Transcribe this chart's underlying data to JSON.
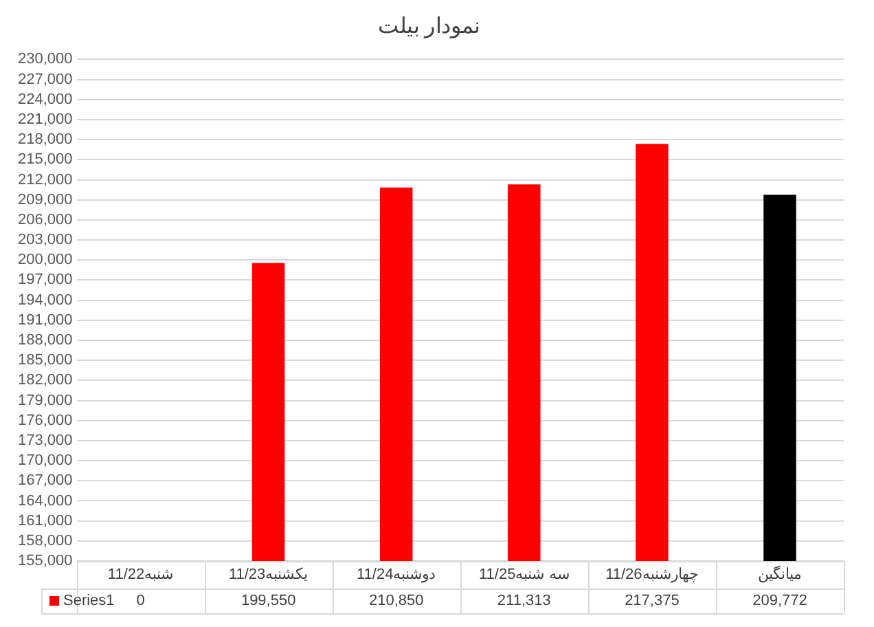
{
  "chart_data": {
    "type": "bar",
    "title": "نمودار بیلت",
    "categories": [
      "شنبه11/22",
      "یکشنبه11/23",
      "دوشنبه11/24",
      "سه شنبه11/25",
      "چهارشنبه11/26",
      "میانگین"
    ],
    "series": [
      {
        "name": "Series1",
        "color": "#ff0000",
        "colors": [
          "#ff0000",
          "#ff0000",
          "#ff0000",
          "#ff0000",
          "#ff0000",
          "#000000"
        ],
        "values": [
          null,
          199550,
          210850,
          211313,
          217375,
          209772
        ],
        "value_labels": [
          "0",
          "199,550",
          "210,850",
          "211,313",
          "217,375",
          "209,772"
        ]
      }
    ],
    "ylim": [
      155000,
      230000
    ],
    "yticks": [
      {
        "value": 155000,
        "label": "155,000"
      },
      {
        "value": 158000,
        "label": "158,000"
      },
      {
        "value": 161000,
        "label": "161,000"
      },
      {
        "value": 164000,
        "label": "164,000"
      },
      {
        "value": 167000,
        "label": "167,000"
      },
      {
        "value": 170000,
        "label": "170,000"
      },
      {
        "value": 173000,
        "label": "173,000"
      },
      {
        "value": 176000,
        "label": "176,000"
      },
      {
        "value": 179000,
        "label": "179,000"
      },
      {
        "value": 182000,
        "label": "182,000"
      },
      {
        "value": 185000,
        "label": "185,000"
      },
      {
        "value": 188000,
        "label": "188,000"
      },
      {
        "value": 191000,
        "label": "191,000"
      },
      {
        "value": 194000,
        "label": "194,000"
      },
      {
        "value": 197000,
        "label": "197,000"
      },
      {
        "value": 200000,
        "label": "200,000"
      },
      {
        "value": 203000,
        "label": "203,000"
      },
      {
        "value": 206000,
        "label": "206,000"
      },
      {
        "value": 209000,
        "label": "209,000"
      },
      {
        "value": 212000,
        "label": "212,000"
      },
      {
        "value": 215000,
        "label": "215,000"
      },
      {
        "value": 218000,
        "label": "218,000"
      },
      {
        "value": 221000,
        "label": "221,000"
      },
      {
        "value": 224000,
        "label": "224,000"
      },
      {
        "value": 227000,
        "label": "227,000"
      },
      {
        "value": 230000,
        "label": "230,000"
      }
    ],
    "grid": "y",
    "legend": "bottom"
  }
}
